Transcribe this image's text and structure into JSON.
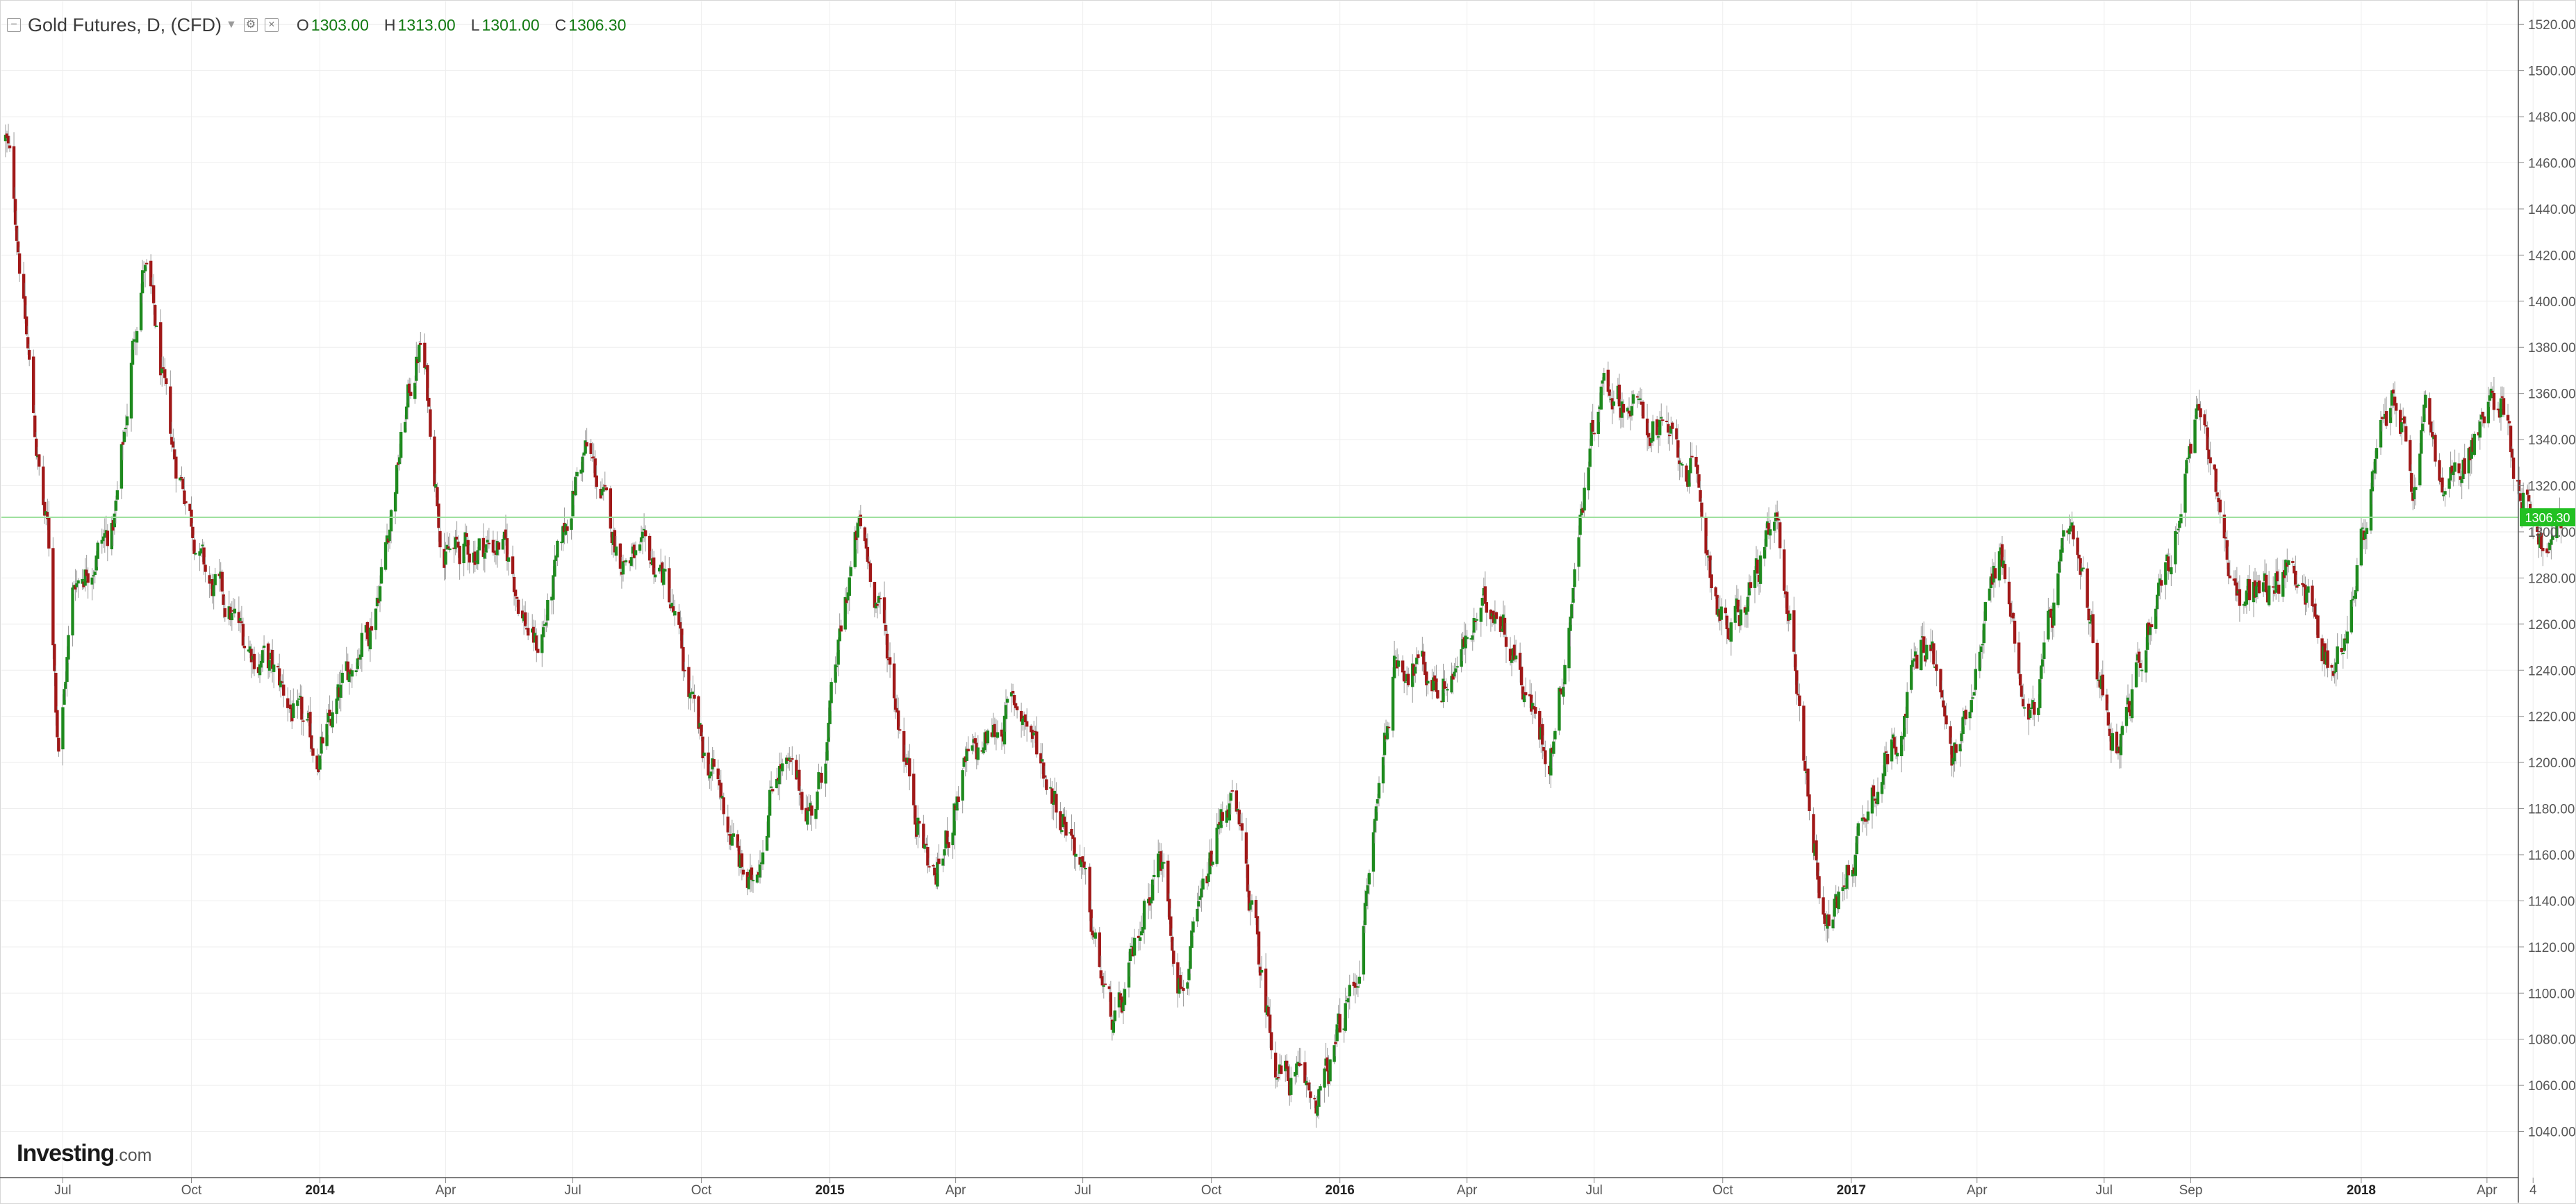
{
  "header": {
    "title": "Gold Futures, D, (CFD)",
    "open_label": "O",
    "open": "1303.00",
    "high_label": "H",
    "high": "1313.00",
    "low_label": "L",
    "low": "1301.00",
    "close_label": "C",
    "close": "1306.30"
  },
  "logo": {
    "brand": "Investing",
    "suffix": ".com"
  },
  "colors": {
    "up": "#1e8a1e",
    "down": "#a01818",
    "wick": "#9a9a9a",
    "grid": "#eeeeee",
    "price_line": "#9fe09f",
    "price_tag": "#22c022",
    "axis_text": "#555555"
  },
  "icons": [
    "collapse-icon",
    "settings-icon",
    "close-icon",
    "caret-down-icon"
  ],
  "chart_data": {
    "type": "candlestick",
    "title": "Gold Futures, D, (CFD)",
    "ylim": [
      1020,
      1530
    ],
    "x_range": [
      "2013-05-21",
      "2018-04-13"
    ],
    "y_ticks": [
      "1520.00",
      "1500.00",
      "1480.00",
      "1460.00",
      "1440.00",
      "1420.00",
      "1400.00",
      "1380.00",
      "1360.00",
      "1340.00",
      "1320.00",
      "1300.00",
      "1280.00",
      "1260.00",
      "1240.00",
      "1220.00",
      "1200.00",
      "1180.00",
      "1160.00",
      "1140.00",
      "1120.00",
      "1100.00",
      "1080.00",
      "1060.00",
      "1040.00"
    ],
    "x_ticks": [
      {
        "label": "Jul",
        "date": "2013-07-01"
      },
      {
        "label": "Oct",
        "date": "2013-10-01"
      },
      {
        "label": "2014",
        "date": "2014-01-01",
        "bold": true
      },
      {
        "label": "Apr",
        "date": "2014-04-01"
      },
      {
        "label": "Jul",
        "date": "2014-07-01"
      },
      {
        "label": "Oct",
        "date": "2014-10-01"
      },
      {
        "label": "2015",
        "date": "2015-01-01",
        "bold": true
      },
      {
        "label": "Apr",
        "date": "2015-04-01"
      },
      {
        "label": "Jul",
        "date": "2015-07-01"
      },
      {
        "label": "Oct",
        "date": "2015-10-01"
      },
      {
        "label": "2016",
        "date": "2016-01-01",
        "bold": true
      },
      {
        "label": "Apr",
        "date": "2016-04-01"
      },
      {
        "label": "Jul",
        "date": "2016-07-01"
      },
      {
        "label": "Oct",
        "date": "2016-10-01"
      },
      {
        "label": "2017",
        "date": "2017-01-01",
        "bold": true
      },
      {
        "label": "Apr",
        "date": "2017-04-01"
      },
      {
        "label": "Jul",
        "date": "2017-07-01"
      },
      {
        "label": "Sep",
        "date": "2017-09-01"
      },
      {
        "label": "2018",
        "date": "2018-01-01",
        "bold": true
      },
      {
        "label": "Apr",
        "date": "2018-04-01"
      },
      {
        "label": "4",
        "date": "2018-05-04"
      }
    ],
    "last_price": 1306.3,
    "last_price_label": "1306.30",
    "anchors": [
      {
        "date": "2013-05-21",
        "close": 1470
      },
      {
        "date": "2013-06-20",
        "close": 1300
      },
      {
        "date": "2013-06-28",
        "close": 1210
      },
      {
        "date": "2013-07-10",
        "close": 1280
      },
      {
        "date": "2013-08-05",
        "close": 1300
      },
      {
        "date": "2013-08-28",
        "close": 1415
      },
      {
        "date": "2013-09-20",
        "close": 1330
      },
      {
        "date": "2013-10-15",
        "close": 1275
      },
      {
        "date": "2013-11-20",
        "close": 1245
      },
      {
        "date": "2013-12-31",
        "close": 1205
      },
      {
        "date": "2014-02-05",
        "close": 1260
      },
      {
        "date": "2014-03-14",
        "close": 1380
      },
      {
        "date": "2014-04-01",
        "close": 1290
      },
      {
        "date": "2014-05-10",
        "close": 1295
      },
      {
        "date": "2014-06-05",
        "close": 1250
      },
      {
        "date": "2014-07-10",
        "close": 1335
      },
      {
        "date": "2014-08-05",
        "close": 1290
      },
      {
        "date": "2014-09-01",
        "close": 1285
      },
      {
        "date": "2014-10-05",
        "close": 1200
      },
      {
        "date": "2014-11-05",
        "close": 1145
      },
      {
        "date": "2014-11-25",
        "close": 1200
      },
      {
        "date": "2014-12-20",
        "close": 1180
      },
      {
        "date": "2015-01-22",
        "close": 1300
      },
      {
        "date": "2015-03-17",
        "close": 1150
      },
      {
        "date": "2015-04-10",
        "close": 1200
      },
      {
        "date": "2015-05-15",
        "close": 1225
      },
      {
        "date": "2015-06-20",
        "close": 1175
      },
      {
        "date": "2015-07-24",
        "close": 1085
      },
      {
        "date": "2015-08-25",
        "close": 1160
      },
      {
        "date": "2015-09-10",
        "close": 1105
      },
      {
        "date": "2015-10-14",
        "close": 1185
      },
      {
        "date": "2015-11-20",
        "close": 1065
      },
      {
        "date": "2015-12-17",
        "close": 1055
      },
      {
        "date": "2016-01-10",
        "close": 1100
      },
      {
        "date": "2016-02-11",
        "close": 1245
      },
      {
        "date": "2016-03-15",
        "close": 1235
      },
      {
        "date": "2016-04-20",
        "close": 1270
      },
      {
        "date": "2016-05-30",
        "close": 1205
      },
      {
        "date": "2016-07-06",
        "close": 1365
      },
      {
        "date": "2016-08-15",
        "close": 1345
      },
      {
        "date": "2016-09-05",
        "close": 1330
      },
      {
        "date": "2016-10-05",
        "close": 1255
      },
      {
        "date": "2016-11-08",
        "close": 1300
      },
      {
        "date": "2016-12-15",
        "close": 1130
      },
      {
        "date": "2017-01-25",
        "close": 1200
      },
      {
        "date": "2017-02-25",
        "close": 1255
      },
      {
        "date": "2017-03-15",
        "close": 1200
      },
      {
        "date": "2017-04-17",
        "close": 1290
      },
      {
        "date": "2017-05-09",
        "close": 1220
      },
      {
        "date": "2017-06-06",
        "close": 1295
      },
      {
        "date": "2017-07-10",
        "close": 1210
      },
      {
        "date": "2017-08-15",
        "close": 1285
      },
      {
        "date": "2017-09-08",
        "close": 1350
      },
      {
        "date": "2017-10-06",
        "close": 1270
      },
      {
        "date": "2017-11-15",
        "close": 1285
      },
      {
        "date": "2017-12-12",
        "close": 1240
      },
      {
        "date": "2018-01-25",
        "close": 1360
      },
      {
        "date": "2018-02-08",
        "close": 1315
      },
      {
        "date": "2018-02-16",
        "close": 1355
      },
      {
        "date": "2018-03-01",
        "close": 1315
      },
      {
        "date": "2018-04-11",
        "close": 1360
      },
      {
        "date": "2018-04-24",
        "close": 1320
      },
      {
        "date": "2018-05-15",
        "close": 1290
      },
      {
        "date": "2018-05-24",
        "close": 1306
      }
    ]
  }
}
